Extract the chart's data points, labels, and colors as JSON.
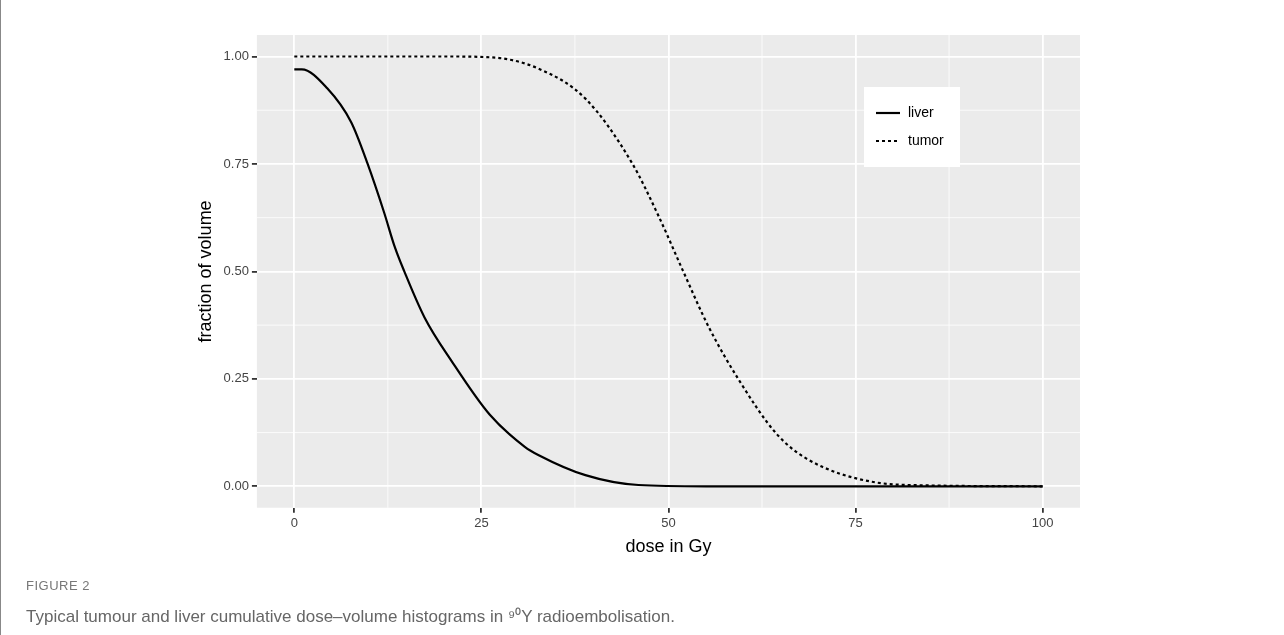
{
  "chart_data": {
    "type": "line",
    "xlabel": "dose in Gy",
    "ylabel": "fraction of volume",
    "xlim": [
      -5,
      105
    ],
    "xticks": [
      0,
      25,
      50,
      75,
      100
    ],
    "ylim": [
      -0.05,
      1.05
    ],
    "yticks": [
      {
        "value": 0,
        "label": "0.00"
      },
      {
        "value": 0.25,
        "label": "0.25"
      },
      {
        "value": 0.5,
        "label": "0.50"
      },
      {
        "value": 0.75,
        "label": "0.75"
      },
      {
        "value": 1,
        "label": "1.00"
      }
    ],
    "grid": true,
    "legend": "top right",
    "marker": "none",
    "series": [
      {
        "name": "liver",
        "color": "#000000",
        "line_style": "solid",
        "x": [
          0,
          1,
          4.4,
          7.6,
          9.8,
          12,
          13.4,
          14.7,
          17.4,
          21,
          26.1,
          30.8,
          32.6,
          38.9,
          46,
          55,
          100
        ],
        "values": [
          0.97,
          0.97,
          0.926,
          0.847,
          0.75,
          0.637,
          0.558,
          0.5,
          0.393,
          0.292,
          0.167,
          0.092,
          0.073,
          0.026,
          0.003,
          0,
          0
        ]
      },
      {
        "name": "tumor",
        "color": "#000000",
        "line_style": "dotted",
        "x": [
          0,
          20,
          26.3,
          32.6,
          38.9,
          45.1,
          48.7,
          51.9,
          55.4,
          59.5,
          64.4,
          68.4,
          77.4,
          85,
          100
        ],
        "values": [
          1,
          1,
          0.998,
          0.972,
          0.902,
          0.753,
          0.628,
          0.503,
          0.37,
          0.245,
          0.123,
          0.065,
          0.01,
          0.002,
          0
        ]
      }
    ],
    "annotations": [
      "FIGURE 2",
      "Typical tumour and liver cumulative dose–volume histograms in ⁹⁰Y radioembolisation."
    ]
  }
}
